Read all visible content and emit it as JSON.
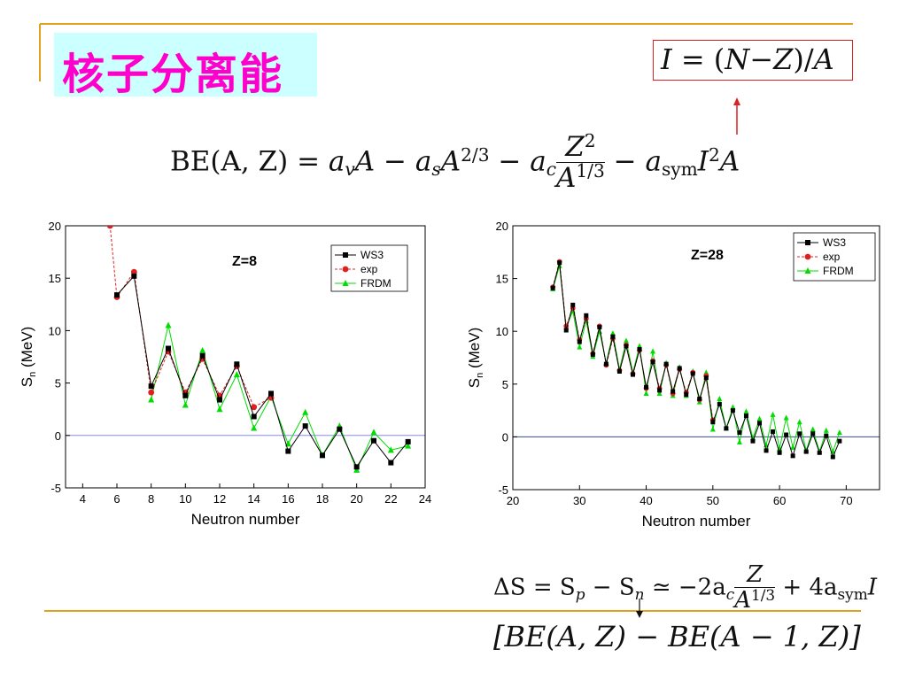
{
  "slide": {
    "title": "核子分离能",
    "colors": {
      "title_bg": "#ccffff",
      "title_fg": "#ff00cc",
      "accent_line": "#e0a020",
      "arrow": "#e02020"
    }
  },
  "formulas": {
    "definition": {
      "lhs": "I",
      "eq": " = (",
      "n": "N",
      "minus": "−",
      "z": "Z",
      "div": ")/",
      "a": "A"
    },
    "binding": {
      "lhs": "BE(A, Z) = ",
      "av": "a",
      "av_sub": "v",
      "a1": "A − ",
      "as": "a",
      "as_sub": "s",
      "a2": "A",
      "a2_exp": "2/3",
      "minus2": " − ",
      "ac": "a",
      "ac_sub": "c",
      "frac_num": "Z",
      "frac_num_exp": "2",
      "frac_den": "A",
      "frac_den_exp": "1/3",
      "minus3": " − ",
      "asym": "a",
      "asym_sub": "sym",
      "i": "I",
      "i_exp": "2",
      "a3": "A"
    },
    "delta": {
      "lhs": "ΔS = S",
      "p": "p",
      "minus": " − S",
      "n": "n",
      "approx": " ≃ −2a",
      "c": "c",
      "frac_num": "Z",
      "frac_den": "A",
      "frac_den_exp": "1/3",
      "plus": " + 4a",
      "sym": "sym",
      "i": "I"
    },
    "bracket": "[BE(A, Z) − BE(A − 1, Z)]"
  },
  "chart_data": [
    {
      "type": "line",
      "annotation": "Z=8",
      "xlabel": "Neutron number",
      "ylabel": "S",
      "ylabel_sub": "n",
      "ylabel_unit": " (MeV)",
      "xlim": [
        3,
        24
      ],
      "ylim": [
        -5,
        20
      ],
      "xticks": [
        4,
        6,
        8,
        10,
        12,
        14,
        16,
        18,
        20,
        22,
        24
      ],
      "yticks": [
        -5,
        0,
        5,
        10,
        15,
        20
      ],
      "legend_position": "top-right",
      "reference_line": 0,
      "series": [
        {
          "name": "WS3",
          "color": "#000000",
          "marker": "square",
          "x": [
            6,
            7,
            8,
            9,
            10,
            11,
            12,
            13,
            14,
            15,
            16,
            17,
            18,
            19,
            20,
            21,
            22,
            23
          ],
          "y": [
            13.4,
            15.2,
            4.7,
            8.3,
            3.8,
            7.6,
            3.4,
            6.8,
            1.8,
            4.0,
            -1.5,
            0.9,
            -1.9,
            0.6,
            -3.0,
            -0.5,
            -2.6,
            -0.6
          ]
        },
        {
          "name": "exp",
          "color": "#e02020",
          "marker": "circle",
          "x": [
            5.6,
            6,
            7,
            8,
            9,
            10,
            11,
            12,
            13,
            14,
            15
          ],
          "y": [
            20,
            13.2,
            15.6,
            4.1,
            8.0,
            4.1,
            7.3,
            3.8,
            6.6,
            2.7,
            3.6
          ]
        },
        {
          "name": "FRDM",
          "color": "#00dd00",
          "marker": "triangle",
          "x": [
            8,
            9,
            10,
            11,
            12,
            13,
            14,
            15,
            16,
            17,
            18,
            19,
            20,
            21,
            22,
            23
          ],
          "y": [
            3.4,
            10.5,
            2.9,
            8.1,
            2.5,
            5.8,
            0.7,
            3.7,
            -0.8,
            2.2,
            -1.9,
            0.9,
            -3.3,
            0.3,
            -1.4,
            -1.0
          ]
        }
      ]
    },
    {
      "type": "line",
      "annotation": "Z=28",
      "xlabel": "Neutron number",
      "ylabel": "S",
      "ylabel_sub": "n",
      "ylabel_unit": " (MeV)",
      "xlim": [
        20,
        75
      ],
      "ylim": [
        -5,
        20
      ],
      "xticks": [
        20,
        30,
        40,
        50,
        60,
        70
      ],
      "yticks": [
        -5,
        0,
        5,
        10,
        15,
        20
      ],
      "legend_position": "top-right",
      "reference_line": 0,
      "series": [
        {
          "name": "WS3",
          "color": "#000000",
          "marker": "square",
          "x": [
            26,
            27,
            28,
            29,
            30,
            31,
            32,
            33,
            34,
            35,
            36,
            37,
            38,
            39,
            40,
            41,
            42,
            43,
            44,
            45,
            46,
            47,
            48,
            49,
            50,
            51,
            52,
            53,
            54,
            55,
            56,
            57,
            58,
            59,
            60,
            61,
            62,
            63,
            64,
            65,
            66,
            67,
            68,
            69
          ],
          "y": [
            14.1,
            16.5,
            10.1,
            12.5,
            9.0,
            11.5,
            7.8,
            10.4,
            6.9,
            9.5,
            6.2,
            8.6,
            5.9,
            8.3,
            4.7,
            7.1,
            4.4,
            6.9,
            4.3,
            6.5,
            4.0,
            6.0,
            3.6,
            5.6,
            1.4,
            3.1,
            0.8,
            2.5,
            0.4,
            2.0,
            -0.4,
            1.3,
            -1.3,
            0.5,
            -1.5,
            0.2,
            -1.8,
            0.3,
            -1.4,
            0.3,
            -1.5,
            0.1,
            -1.9,
            -0.4
          ]
        },
        {
          "name": "exp",
          "color": "#e02020",
          "marker": "circle",
          "x": [
            26,
            27,
            28,
            29,
            30,
            31,
            32,
            33,
            34,
            35,
            36,
            37,
            38,
            39,
            40,
            41,
            42,
            43,
            44,
            45,
            46,
            47,
            48,
            49,
            50
          ],
          "y": [
            14.2,
            16.6,
            10.5,
            12.2,
            9.2,
            11.2,
            7.9,
            10.5,
            6.8,
            9.3,
            6.3,
            8.7,
            6.0,
            8.2,
            4.6,
            7.2,
            4.6,
            6.8,
            4.1,
            6.4,
            4.2,
            6.1,
            3.5,
            5.8,
            1.6
          ]
        },
        {
          "name": "FRDM",
          "color": "#00dd00",
          "marker": "triangle",
          "x": [
            26,
            27,
            28,
            29,
            30,
            31,
            32,
            33,
            34,
            35,
            36,
            37,
            38,
            39,
            40,
            41,
            42,
            43,
            44,
            45,
            46,
            47,
            48,
            49,
            50,
            51,
            52,
            53,
            54,
            55,
            56,
            57,
            58,
            59,
            60,
            61,
            62,
            63,
            64,
            65,
            66,
            67,
            68,
            69
          ],
          "y": [
            14.0,
            16.2,
            10.4,
            11.9,
            8.5,
            11.0,
            7.6,
            10.0,
            7.0,
            9.8,
            6.4,
            9.1,
            6.1,
            8.6,
            4.1,
            8.1,
            4.1,
            7.0,
            3.9,
            6.6,
            3.9,
            6.2,
            3.3,
            6.1,
            0.7,
            3.6,
            0.8,
            2.8,
            -0.5,
            2.4,
            -0.1,
            1.7,
            -0.8,
            2.1,
            -1.1,
            1.8,
            -1.0,
            1.4,
            -1.3,
            0.7,
            -1.4,
            0.6,
            -1.4,
            0.4
          ]
        }
      ]
    }
  ]
}
